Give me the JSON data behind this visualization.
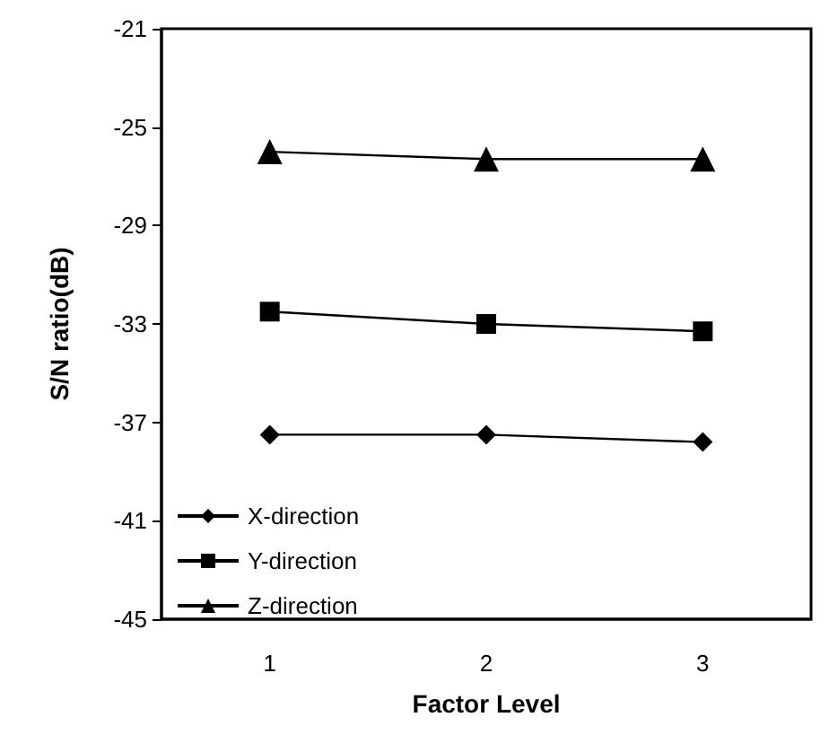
{
  "chart_data": {
    "type": "line",
    "xlabel": "Factor Level",
    "ylabel": "S/N ratio(dB)",
    "categories": [
      "1",
      "2",
      "3"
    ],
    "series": [
      {
        "name": "X-direction",
        "color": "#000000",
        "marker": "diamond",
        "values": [
          -37.5,
          -37.5,
          -37.8
        ]
      },
      {
        "name": "Y-direction",
        "color": "#000000",
        "marker": "square",
        "values": [
          -32.5,
          -33.0,
          -33.3
        ]
      },
      {
        "name": "Z-direction",
        "color": "#000000",
        "marker": "triangle",
        "values": [
          -26.0,
          -26.3,
          -26.3
        ]
      }
    ],
    "ylim": [
      -45,
      -21
    ],
    "yticks": [
      -45,
      -41,
      -37,
      -33,
      -29,
      -25,
      -21
    ],
    "grid": false,
    "legend": "bottom left"
  }
}
